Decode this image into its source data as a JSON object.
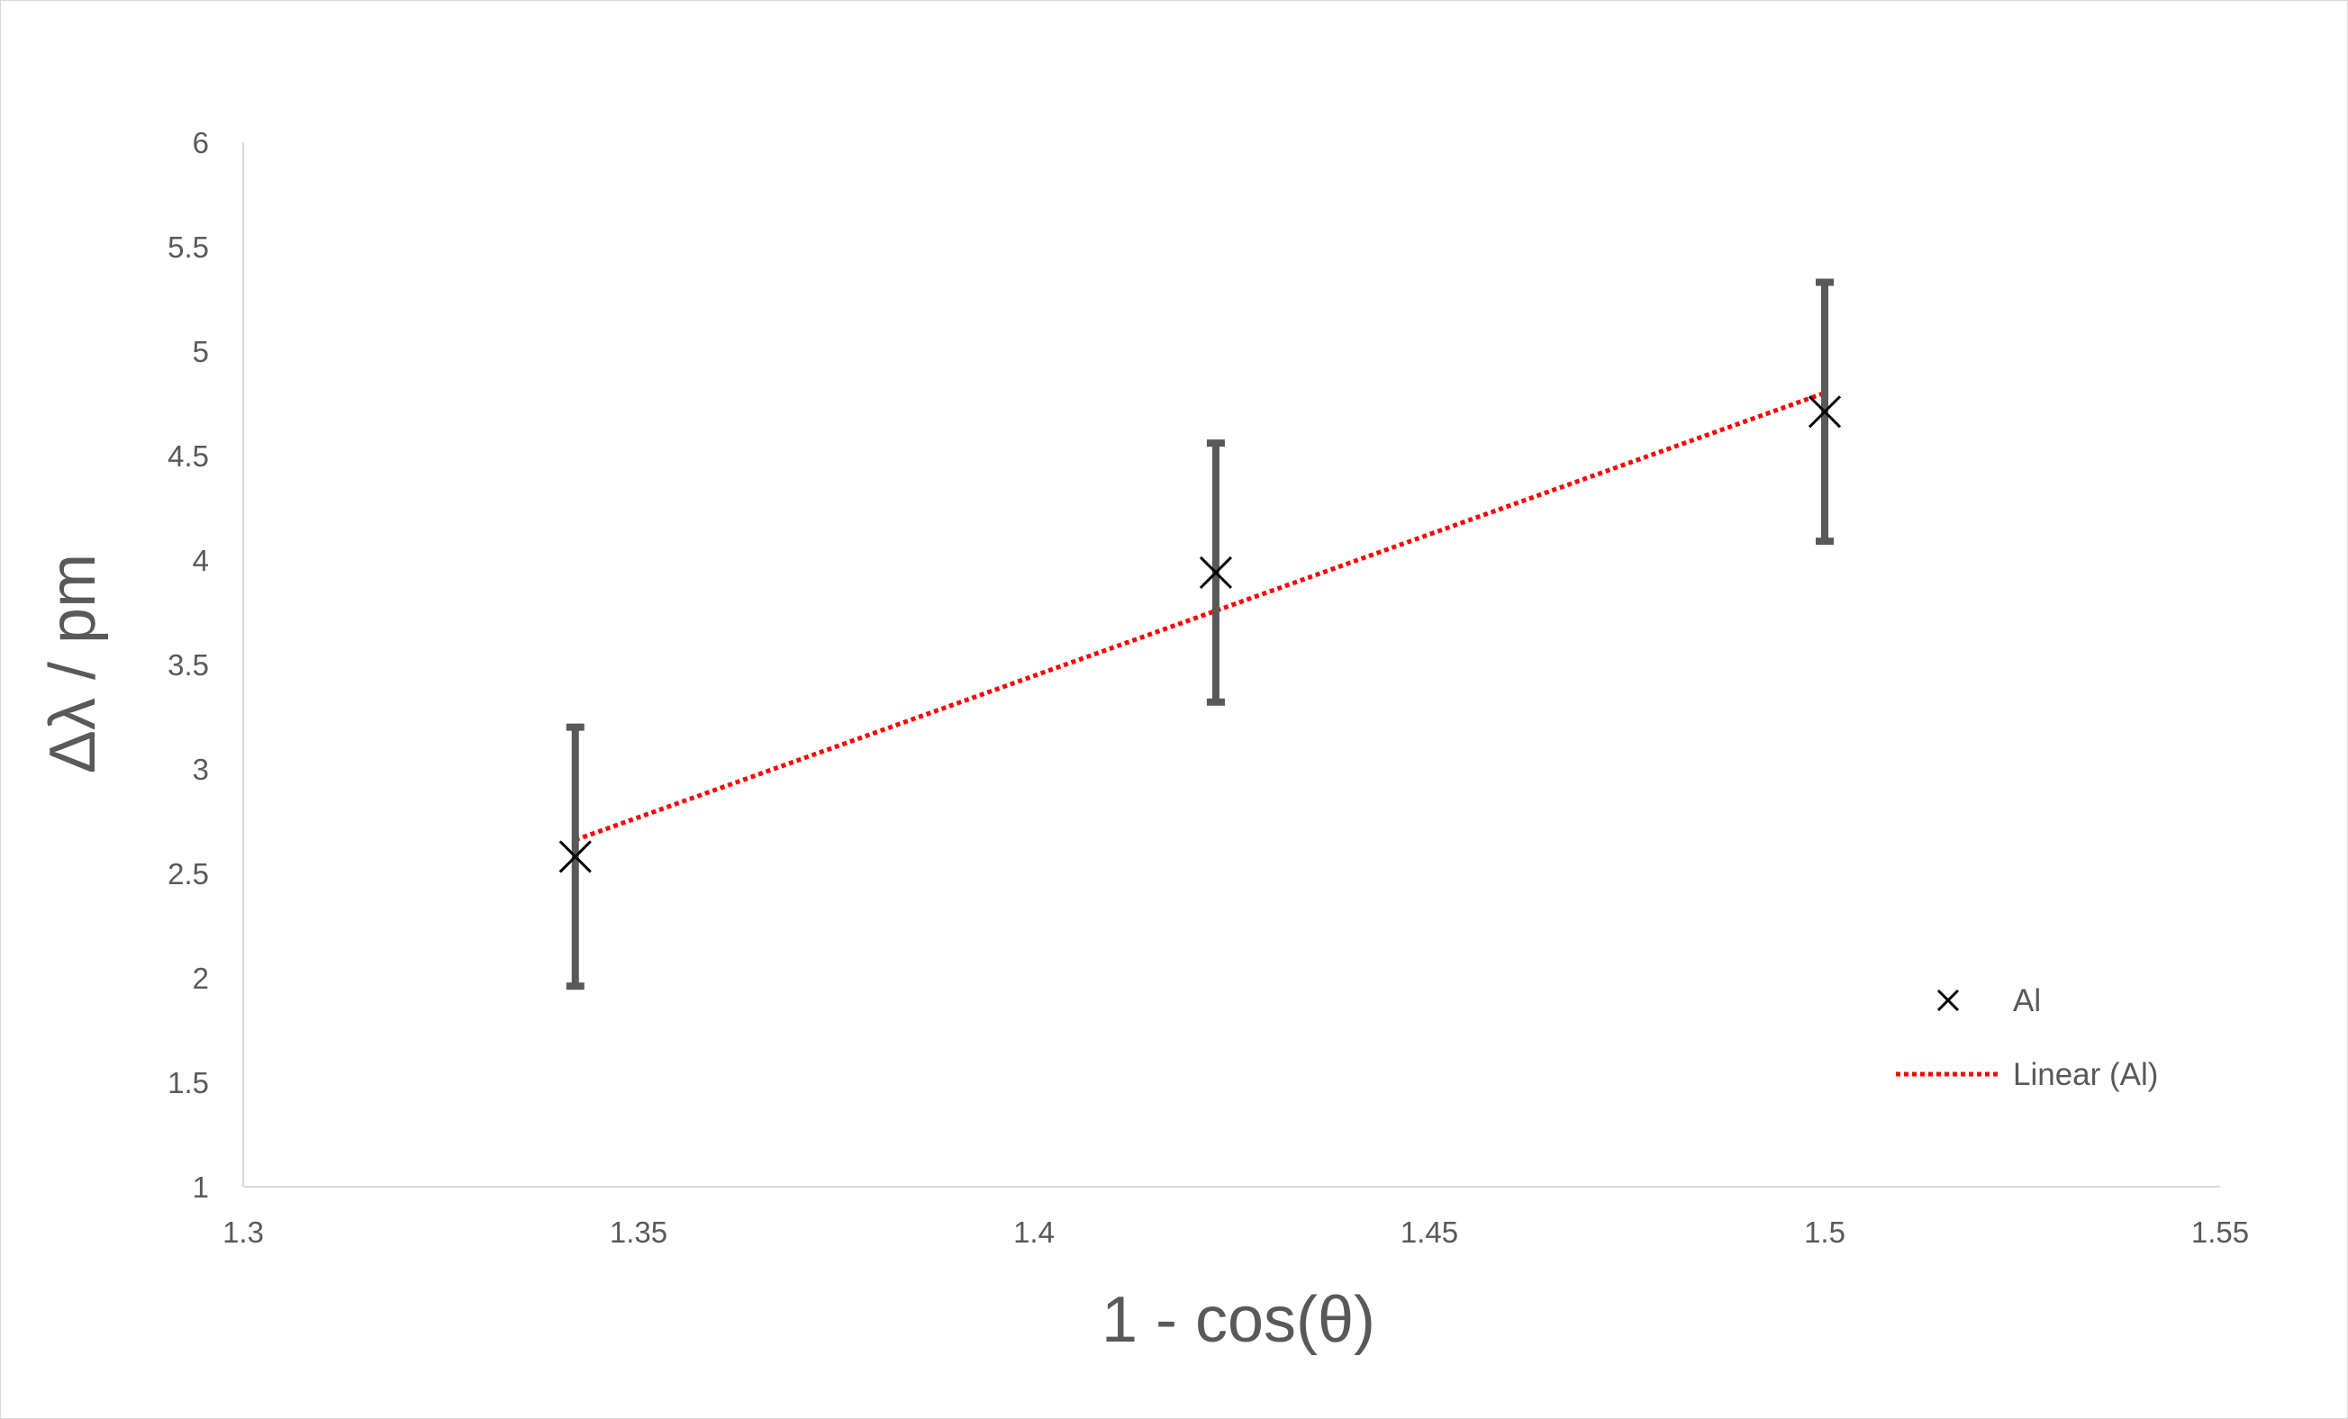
{
  "chart_data": {
    "type": "scatter",
    "xlabel": "1 - cos(θ)",
    "ylabel": "Δλ / pm",
    "xlim": [
      1.3,
      1.55
    ],
    "ylim": [
      1,
      6
    ],
    "x_ticks": [
      "1.3",
      "1.35",
      "1.4",
      "1.45",
      "1.5",
      "1.55"
    ],
    "y_ticks": [
      "1",
      "1.5",
      "2",
      "2.5",
      "3",
      "3.5",
      "4",
      "4.5",
      "5",
      "5.5",
      "6"
    ],
    "grid": false,
    "legend_position": "right",
    "series": [
      {
        "name": "Al",
        "marker": "x",
        "color": "#000000",
        "error_bar_color": "#595959",
        "x": [
          1.342,
          1.423,
          1.5
        ],
        "y": [
          2.58,
          3.94,
          4.71
        ],
        "y_error": [
          0.62,
          0.62,
          0.62
        ]
      }
    ],
    "trendline": {
      "name": "Linear (Al)",
      "color": "#ff0000",
      "style": "dotted",
      "x": [
        1.342,
        1.5
      ],
      "y": [
        2.66,
        4.8
      ]
    }
  },
  "legend": {
    "series_label": "Al",
    "trendline_label": "Linear (Al)"
  }
}
